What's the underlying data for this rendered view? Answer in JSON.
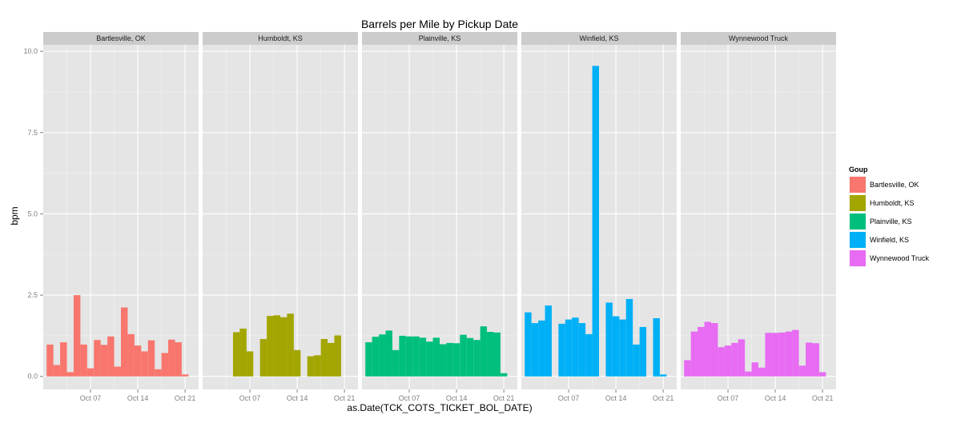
{
  "chart_data": {
    "type": "bar",
    "title": "Barrels per Mile by Pickup Date",
    "xlabel": "as.Date(TCK_COTS_TICKET_BOL_DATE)",
    "ylabel": "bpm",
    "ylim": [
      -0.4,
      10.2
    ],
    "yticks": [
      0.0,
      2.5,
      5.0,
      7.5,
      10.0
    ],
    "ytick_labels": [
      "0.0",
      "2.5",
      "5.0",
      "7.5",
      "10.0"
    ],
    "xlim": [
      "2014-09-30",
      "2014-10-23"
    ],
    "xticks": [
      "2014-10-07",
      "2014-10-14",
      "2014-10-21"
    ],
    "xtick_labels": [
      "Oct 07",
      "Oct 14",
      "Oct 21"
    ],
    "grid": true,
    "legend_placement": "right",
    "legend_title": "Goup",
    "facets": [
      {
        "name": "Bartlesville, OK",
        "color": "#F8766D",
        "dates": [
          "2014-10-01",
          "2014-10-02",
          "2014-10-03",
          "2014-10-04",
          "2014-10-05",
          "2014-10-06",
          "2014-10-07",
          "2014-10-08",
          "2014-10-09",
          "2014-10-10",
          "2014-10-11",
          "2014-10-12",
          "2014-10-13",
          "2014-10-14",
          "2014-10-15",
          "2014-10-16",
          "2014-10-17",
          "2014-10-18",
          "2014-10-19",
          "2014-10-20",
          "2014-10-21",
          "2014-10-22"
        ],
        "values": [
          0.98,
          0.35,
          1.05,
          0.13,
          2.5,
          0.98,
          0.25,
          1.12,
          0.97,
          1.23,
          0.3,
          2.12,
          1.3,
          0.95,
          0.77,
          1.11,
          0.22,
          0.72,
          1.13,
          1.05,
          0.06,
          0.0
        ]
      },
      {
        "name": "Humboldt, KS",
        "color": "#A3A500",
        "dates": [
          "2014-10-05",
          "2014-10-06",
          "2014-10-07",
          "2014-10-08",
          "2014-10-09",
          "2014-10-10",
          "2014-10-11",
          "2014-10-12",
          "2014-10-13",
          "2014-10-14",
          "2014-10-15",
          "2014-10-16",
          "2014-10-17",
          "2014-10-18",
          "2014-10-19",
          "2014-10-20",
          "2014-10-21",
          "2014-10-22"
        ],
        "values": [
          1.36,
          1.47,
          0.77,
          0.0,
          1.15,
          1.86,
          1.88,
          1.82,
          1.93,
          0.81,
          0.0,
          0.62,
          0.65,
          1.15,
          1.03,
          1.26,
          0.0,
          0.0
        ]
      },
      {
        "name": "Plainville, KS",
        "color": "#00BF7D",
        "dates": [
          "2014-10-01",
          "2014-10-02",
          "2014-10-03",
          "2014-10-04",
          "2014-10-05",
          "2014-10-06",
          "2014-10-07",
          "2014-10-08",
          "2014-10-09",
          "2014-10-10",
          "2014-10-11",
          "2014-10-12",
          "2014-10-13",
          "2014-10-14",
          "2014-10-15",
          "2014-10-16",
          "2014-10-17",
          "2014-10-18",
          "2014-10-19",
          "2014-10-20",
          "2014-10-21",
          "2014-10-22"
        ],
        "values": [
          1.05,
          1.22,
          1.29,
          1.41,
          0.81,
          1.25,
          1.23,
          1.23,
          1.19,
          1.07,
          1.19,
          0.99,
          1.03,
          1.02,
          1.28,
          1.18,
          1.12,
          1.54,
          1.37,
          1.35,
          0.1,
          0.0
        ]
      },
      {
        "name": "Winfield, KS",
        "color": "#00B0F6",
        "dates": [
          "2014-10-01",
          "2014-10-02",
          "2014-10-03",
          "2014-10-04",
          "2014-10-05",
          "2014-10-06",
          "2014-10-07",
          "2014-10-08",
          "2014-10-09",
          "2014-10-10",
          "2014-10-11",
          "2014-10-12",
          "2014-10-13",
          "2014-10-14",
          "2014-10-15",
          "2014-10-16",
          "2014-10-17",
          "2014-10-18",
          "2014-10-19",
          "2014-10-20",
          "2014-10-21",
          "2014-10-22"
        ],
        "values": [
          1.97,
          1.64,
          1.72,
          2.18,
          0.0,
          1.62,
          1.75,
          1.81,
          1.64,
          1.3,
          9.55,
          0.0,
          2.27,
          1.85,
          1.75,
          2.38,
          0.98,
          1.52,
          0.0,
          1.79,
          0.06,
          0.0
        ]
      },
      {
        "name": "Wynnewood Truck",
        "color": "#E76BF3",
        "dates": [
          "2014-10-01",
          "2014-10-02",
          "2014-10-03",
          "2014-10-04",
          "2014-10-05",
          "2014-10-06",
          "2014-10-07",
          "2014-10-08",
          "2014-10-09",
          "2014-10-10",
          "2014-10-11",
          "2014-10-12",
          "2014-10-13",
          "2014-10-14",
          "2014-10-15",
          "2014-10-16",
          "2014-10-17",
          "2014-10-18",
          "2014-10-19",
          "2014-10-20",
          "2014-10-21",
          "2014-10-22"
        ],
        "values": [
          0.5,
          1.38,
          1.52,
          1.68,
          1.64,
          0.9,
          0.95,
          1.03,
          1.14,
          0.15,
          0.43,
          0.27,
          1.34,
          1.34,
          1.35,
          1.38,
          1.43,
          0.33,
          1.04,
          1.02,
          0.13,
          0.0
        ]
      }
    ]
  }
}
